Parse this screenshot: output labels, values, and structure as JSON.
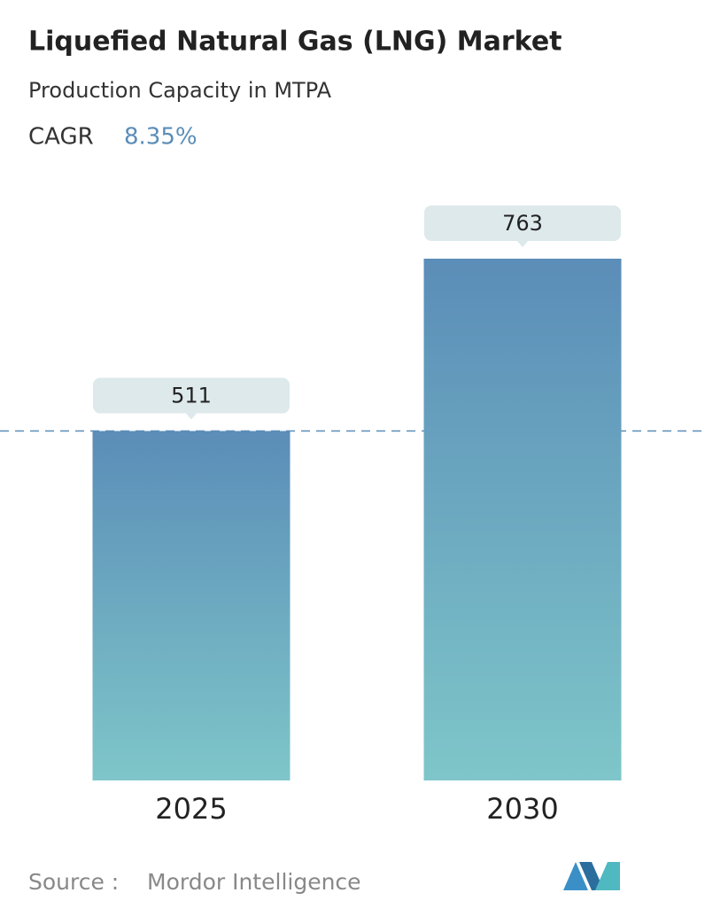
{
  "chart_data": {
    "type": "bar",
    "title": "Liquefied Natural Gas (LNG) Market",
    "subtitle": "Production Capacity in MTPA",
    "cagr_label": "CAGR",
    "cagr_value": "8.35%",
    "categories": [
      "2025",
      "2030"
    ],
    "values": [
      511,
      763
    ],
    "source_label": "Source :",
    "source": "Mordor Intelligence",
    "color_top": "#5b8db8",
    "color_bottom": "#7ec6c9"
  }
}
